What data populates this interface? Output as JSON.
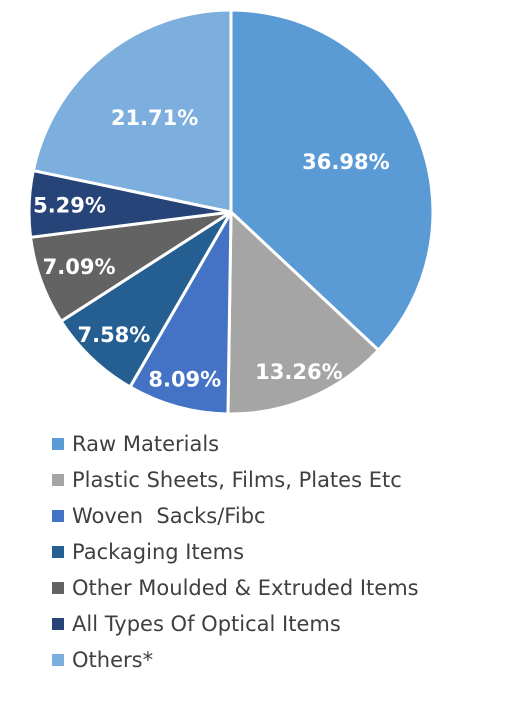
{
  "chart_data": {
    "type": "pie",
    "categories": [
      "Raw Materials",
      "Plastic Sheets, Films, Plates Etc",
      "Woven  Sacks/Fibc",
      "Packaging Items",
      "Other Moulded & Extruded Items",
      "All Types Of Optical Items",
      "Others*"
    ],
    "values": [
      36.98,
      13.26,
      8.09,
      7.58,
      7.09,
      5.29,
      21.71
    ],
    "labels": [
      "36.98%",
      "13.26%",
      "8.09%",
      "7.58%",
      "7.09%",
      "5.29%",
      "21.71%"
    ],
    "colors": [
      "#5B9BD5",
      "#A5A5A5",
      "#4472C4",
      "#255E91",
      "#636363",
      "#264478",
      "#7CAFDD"
    ],
    "legend_position": "bottom",
    "start_angle_deg": 0,
    "direction": "clockwise"
  }
}
